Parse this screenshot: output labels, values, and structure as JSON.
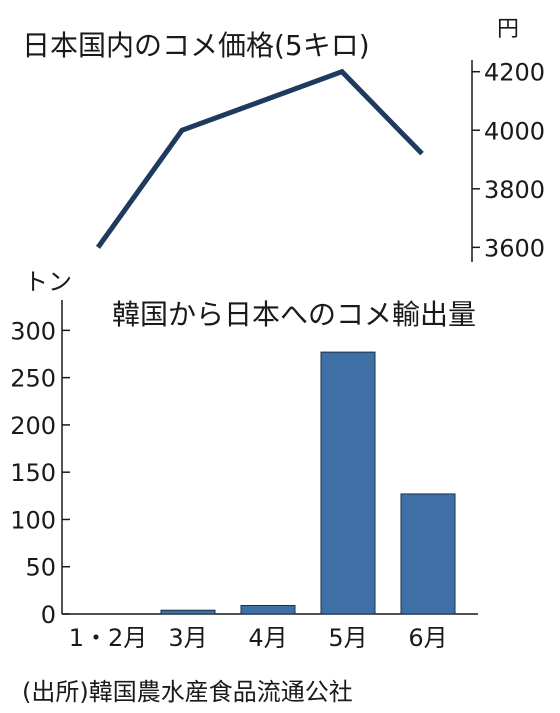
{
  "chart_data": [
    {
      "type": "line",
      "title": "日本国内のコメ価格(5キロ)",
      "unit": "円",
      "x": [
        "1・2月",
        "3月",
        "4月",
        "5月",
        "6月"
      ],
      "values": [
        3600,
        4000,
        4100,
        4200,
        3920
      ],
      "ylim": [
        3550,
        4240
      ],
      "yticks": [
        "3600",
        "3800",
        "4000",
        "4200"
      ],
      "color": "#1f3a5f",
      "axis_side": "right",
      "grid": false
    },
    {
      "type": "bar",
      "title": "韓国から日本へのコメ輸出量",
      "unit": "トン",
      "categories": [
        "1・2月",
        "3月",
        "4月",
        "5月",
        "6月"
      ],
      "values": [
        0,
        4,
        9,
        277,
        127
      ],
      "ylim": [
        0,
        330
      ],
      "yticks": [
        "0",
        "50",
        "100",
        "150",
        "200",
        "250",
        "300"
      ],
      "color": "#3e70a6",
      "axis_side": "left",
      "grid": false
    }
  ],
  "source": "(出所)韓国農水産食品流通公社"
}
